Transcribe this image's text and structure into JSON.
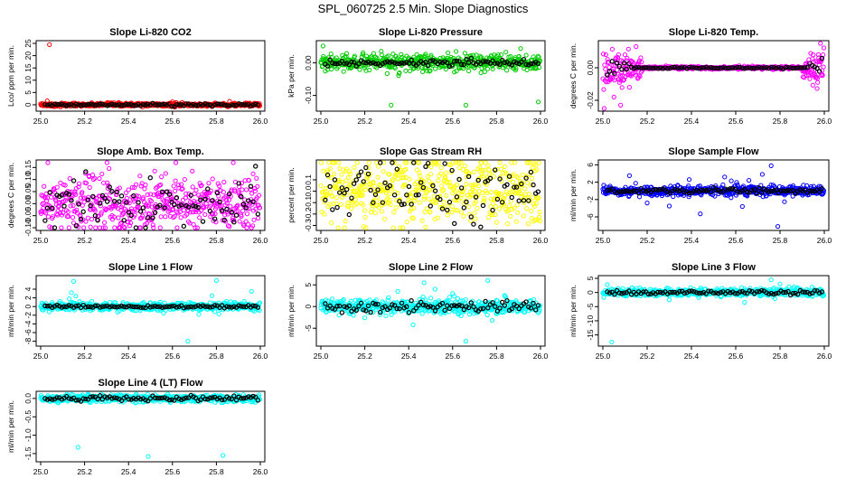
{
  "page": {
    "title": "SPL_060725  2.5 Min. Slope Diagnostics"
  },
  "chart_data": [
    {
      "type": "scatter",
      "title": "Slope Li-820 CO2",
      "ylabel": "Lco/ ppm per min.",
      "color": "#ff0000",
      "xlim": [
        25.0,
        26.0
      ],
      "ylim": [
        -1.5,
        25
      ],
      "xticks": [
        "25.0",
        "25.2",
        "25.4",
        "25.6",
        "25.8",
        "26.0"
      ],
      "yticks": [
        {
          "v": 0,
          "label": "0"
        },
        {
          "v": 5,
          "label": "5"
        },
        {
          "v": 10,
          "label": "10"
        },
        {
          "v": 15,
          "label": "15"
        },
        {
          "v": 20,
          "label": "20"
        },
        {
          "v": 25,
          "label": "25"
        }
      ],
      "base": {
        "center": 0,
        "noise": 0.35
      },
      "overlay": {
        "center": 0,
        "noise": 0.25
      },
      "outliers": [
        {
          "x": 25.04,
          "y": 24.5
        },
        {
          "x": 25.03,
          "y": 1.6
        },
        {
          "x": 25.6,
          "y": 1.2
        },
        {
          "x": 25.86,
          "y": 1.4
        }
      ]
    },
    {
      "type": "scatter",
      "title": "Slope Li-820 Pressure",
      "ylabel": "kPa per min.",
      "color": "#00cc00",
      "xlim": [
        25.0,
        26.0
      ],
      "ylim": [
        -0.14,
        0.06
      ],
      "xticks": [
        "25.0",
        "25.2",
        "25.4",
        "25.6",
        "25.8",
        "26.0"
      ],
      "yticks": [
        {
          "v": -0.1,
          "label": "-0.10"
        },
        {
          "v": 0,
          "label": "0.00"
        }
      ],
      "base": {
        "center": 0.0,
        "noise": 0.012
      },
      "overlay": {
        "center": 0.0,
        "noise": 0.005
      },
      "outliers": [
        {
          "x": 25.01,
          "y": 0.052
        },
        {
          "x": 25.02,
          "y": -0.025
        },
        {
          "x": 25.32,
          "y": -0.13
        },
        {
          "x": 25.66,
          "y": -0.13
        },
        {
          "x": 25.99,
          "y": -0.12
        }
      ]
    },
    {
      "type": "scatter",
      "title": "Slope Li-820 Temp.",
      "ylabel": "degrees C per min.",
      "color": "#ff00ff",
      "xlim": [
        25.0,
        26.0
      ],
      "ylim": [
        -0.025,
        0.015
      ],
      "xticks": [
        "25.0",
        "25.2",
        "25.4",
        "25.6",
        "25.8",
        "26.0"
      ],
      "yticks": [
        {
          "v": -0.02,
          "label": "-0.02"
        },
        {
          "v": 0,
          "label": "0.00"
        }
      ],
      "base": {
        "center": 0.0,
        "noise": 0.0004
      },
      "overlay": {
        "center": 0.0,
        "noise": 0.0002
      },
      "outliers": [
        {
          "x": 25.05,
          "y": -0.018
        },
        {
          "x": 25.08,
          "y": -0.023
        },
        {
          "x": 25.1,
          "y": 0.008
        },
        {
          "x": 25.12,
          "y": -0.012
        },
        {
          "x": 25.15,
          "y": 0.013
        },
        {
          "x": 25.16,
          "y": -0.006
        },
        {
          "x": 25.07,
          "y": -0.004
        },
        {
          "x": 25.13,
          "y": 0.004
        },
        {
          "x": 25.95,
          "y": 0.008
        },
        {
          "x": 25.97,
          "y": -0.009
        },
        {
          "x": 25.93,
          "y": 0.005
        },
        {
          "x": 25.99,
          "y": -0.004
        }
      ]
    },
    {
      "type": "scatter",
      "title": "Slope Amb. Box Temp.",
      "ylabel": "degrees C per min.",
      "color": "#ff00ff",
      "xlim": [
        25.0,
        26.0
      ],
      "ylim": [
        -0.1,
        0.17
      ],
      "xticks": [
        "25.0",
        "25.2",
        "25.4",
        "25.6",
        "25.8",
        "26.0"
      ],
      "yticks": [
        {
          "v": -0.1,
          "label": "-0.10"
        },
        {
          "v": -0.05,
          "label": "-0.05"
        },
        {
          "v": 0,
          "label": "0.00"
        },
        {
          "v": 0.05,
          "label": "0.05"
        },
        {
          "v": 0.1,
          "label": "0.10"
        },
        {
          "v": 0.15,
          "label": "0.15"
        }
      ],
      "base": {
        "center": 0.0,
        "noise": 0.06
      },
      "overlay": {
        "center": 0.0,
        "noise": 0.05
      },
      "outliers": []
    },
    {
      "type": "scatter",
      "title": "Slope Gas Stream RH",
      "ylabel": "percent per min.",
      "color": "#ffff00",
      "xlim": [
        25.0,
        26.0
      ],
      "ylim": [
        -0.32,
        0.25
      ],
      "xticks": [
        "25.0",
        "25.2",
        "25.4",
        "25.6",
        "25.8",
        "26.0"
      ],
      "yticks": [
        {
          "v": -0.3,
          "label": "-0.3"
        },
        {
          "v": -0.2,
          "label": "-0.2"
        },
        {
          "v": -0.1,
          "label": "-0.1"
        },
        {
          "v": 0,
          "label": "0.0"
        },
        {
          "v": 0.1,
          "label": "0.1"
        }
      ],
      "base": {
        "center": 0.0,
        "noise": 0.15
      },
      "overlay": {
        "center": 0.0,
        "noise": 0.12
      },
      "outliers": []
    },
    {
      "type": "scatter",
      "title": "Slope Sample Flow",
      "ylabel": "ml/min per min.",
      "color": "#0000ff",
      "xlim": [
        25.0,
        26.0
      ],
      "ylim": [
        -8.5,
        6.5
      ],
      "xticks": [
        "25.0",
        "25.2",
        "25.4",
        "25.6",
        "25.8",
        "26.0"
      ],
      "yticks": [
        {
          "v": -6,
          "label": "-6"
        },
        {
          "v": -2,
          "label": "-2"
        },
        {
          "v": 2,
          "label": "2"
        },
        {
          "v": 6,
          "label": "6"
        }
      ],
      "base": {
        "center": 0.0,
        "noise": 0.6
      },
      "overlay": {
        "center": 0.0,
        "noise": 0.3
      },
      "outliers": [
        {
          "x": 25.12,
          "y": 3.5
        },
        {
          "x": 25.2,
          "y": -2.8
        },
        {
          "x": 25.3,
          "y": -3.5
        },
        {
          "x": 25.44,
          "y": -5.3
        },
        {
          "x": 25.55,
          "y": 3.2
        },
        {
          "x": 25.58,
          "y": 2.3
        },
        {
          "x": 25.72,
          "y": 3.8
        },
        {
          "x": 25.76,
          "y": 5.8
        },
        {
          "x": 25.79,
          "y": -8.2
        },
        {
          "x": 25.82,
          "y": -2.5
        },
        {
          "x": 25.63,
          "y": -3.6
        },
        {
          "x": 25.39,
          "y": 2.6
        }
      ]
    },
    {
      "type": "scatter",
      "title": "Slope Line 1 Flow",
      "ylabel": "ml/min per min.",
      "color": "#00ffff",
      "xlim": [
        25.0,
        26.0
      ],
      "ylim": [
        -8.5,
        6.5
      ],
      "xticks": [
        "25.0",
        "25.2",
        "25.4",
        "25.6",
        "25.8",
        "26.0"
      ],
      "yticks": [
        {
          "v": -8,
          "label": "-8"
        },
        {
          "v": -6,
          "label": "-6"
        },
        {
          "v": -4,
          "label": "-4"
        },
        {
          "v": -2,
          "label": "-2"
        },
        {
          "v": 0,
          "label": "0"
        },
        {
          "v": 2,
          "label": "2"
        },
        {
          "v": 4,
          "label": "4"
        }
      ],
      "base": {
        "center": 0.0,
        "noise": 0.5
      },
      "overlay": {
        "center": 0.0,
        "noise": 0.15
      },
      "outliers": [
        {
          "x": 25.15,
          "y": 5.8
        },
        {
          "x": 25.14,
          "y": 3.2
        },
        {
          "x": 25.16,
          "y": 2.4
        },
        {
          "x": 25.13,
          "y": 1.8
        },
        {
          "x": 25.8,
          "y": 6.0
        },
        {
          "x": 25.67,
          "y": -8.0
        },
        {
          "x": 25.78,
          "y": 2.5
        },
        {
          "x": 25.96,
          "y": 3.5
        },
        {
          "x": 25.72,
          "y": -1.8
        }
      ]
    },
    {
      "type": "scatter",
      "title": "Slope Line 2 Flow",
      "ylabel": "ml/min per min.",
      "color": "#00ffff",
      "xlim": [
        25.0,
        26.0
      ],
      "ylim": [
        -8.5,
        6.5
      ],
      "xticks": [
        "25.0",
        "25.2",
        "25.4",
        "25.6",
        "25.8",
        "26.0"
      ],
      "yticks": [
        {
          "v": -5,
          "label": "-5"
        },
        {
          "v": 0,
          "label": "0"
        },
        {
          "v": 5,
          "label": "5"
        }
      ],
      "base": {
        "center": 0.0,
        "noise": 0.8
      },
      "overlay": {
        "center": 0.0,
        "noise": 0.6
      },
      "outliers": [
        {
          "x": 25.47,
          "y": 5.5
        },
        {
          "x": 25.42,
          "y": -4.2
        },
        {
          "x": 25.66,
          "y": -8.0
        },
        {
          "x": 25.76,
          "y": 6.0
        },
        {
          "x": 25.78,
          "y": -3.2
        },
        {
          "x": 25.6,
          "y": 3.0
        },
        {
          "x": 25.2,
          "y": -2.6
        },
        {
          "x": 25.52,
          "y": 4.0
        },
        {
          "x": 25.35,
          "y": 3.5
        }
      ]
    },
    {
      "type": "scatter",
      "title": "Slope Line 3 Flow",
      "ylabel": "ml/min per min.",
      "color": "#00ffff",
      "xlim": [
        25.0,
        26.0
      ],
      "ylim": [
        -18,
        5
      ],
      "xticks": [
        "25.0",
        "25.2",
        "25.4",
        "25.6",
        "25.8",
        "26.0"
      ],
      "yticks": [
        {
          "v": -15,
          "label": "-15"
        },
        {
          "v": -10,
          "label": "-10"
        },
        {
          "v": -5,
          "label": "-5"
        },
        {
          "v": 0,
          "label": "0"
        },
        {
          "v": 5,
          "label": "5"
        }
      ],
      "base": {
        "center": 0.0,
        "noise": 0.7
      },
      "overlay": {
        "center": 0.0,
        "noise": 0.4
      },
      "outliers": [
        {
          "x": 25.04,
          "y": -17.5
        },
        {
          "x": 25.02,
          "y": 2.8
        },
        {
          "x": 25.76,
          "y": 4.5
        },
        {
          "x": 25.64,
          "y": -3.5
        },
        {
          "x": 25.3,
          "y": -2.6
        },
        {
          "x": 25.84,
          "y": 2.0
        },
        {
          "x": 25.8,
          "y": 3.0
        }
      ]
    },
    {
      "type": "scatter",
      "title": "Slope Line 4 (LT) Flow",
      "ylabel": "ml/min per min.",
      "color": "#00ffff",
      "xlim": [
        25.0,
        26.0
      ],
      "ylim": [
        -1.65,
        0.12
      ],
      "xticks": [
        "25.0",
        "25.2",
        "25.4",
        "25.6",
        "25.8",
        "26.0"
      ],
      "yticks": [
        {
          "v": -1.5,
          "label": "-1.5"
        },
        {
          "v": -1.0,
          "label": "-1.0"
        },
        {
          "v": -0.5,
          "label": "-0.5"
        },
        {
          "v": 0,
          "label": "0.0"
        }
      ],
      "base": {
        "center": 0.0,
        "noise": 0.05
      },
      "overlay": {
        "center": 0.0,
        "noise": 0.04
      },
      "outliers": [
        {
          "x": 25.17,
          "y": -1.33
        },
        {
          "x": 25.49,
          "y": -1.58
        },
        {
          "x": 25.83,
          "y": -1.55
        }
      ]
    }
  ]
}
